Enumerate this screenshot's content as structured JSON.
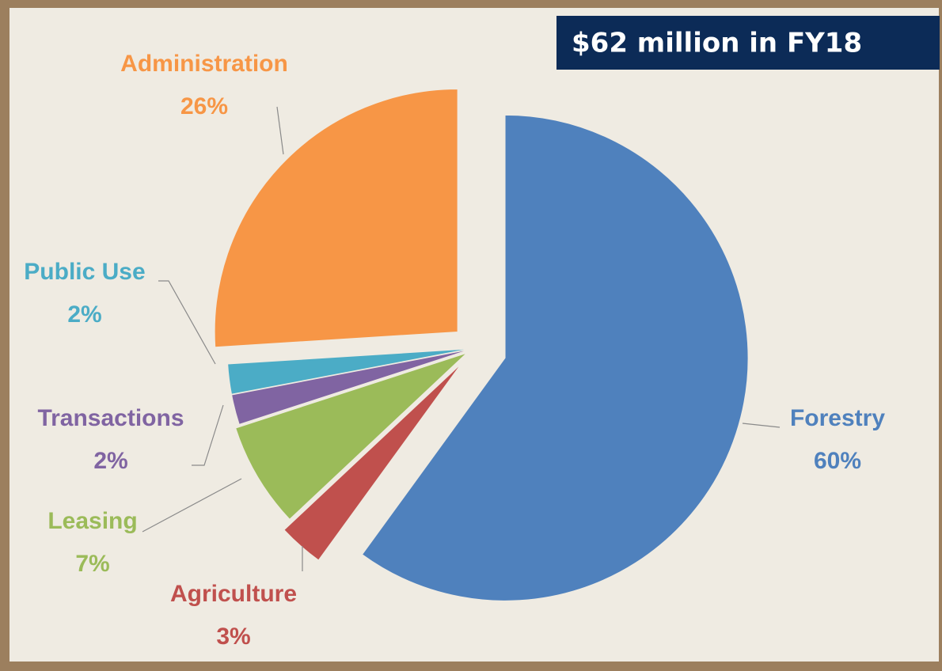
{
  "chart_data": {
    "type": "pie",
    "annotation": "$62 million in FY18",
    "categories": [
      "Forestry",
      "Agriculture",
      "Leasing",
      "Transactions",
      "Public Use",
      "Administration"
    ],
    "values": [
      60,
      3,
      7,
      2,
      2,
      26
    ],
    "value_labels": [
      "60%",
      "3%",
      "7%",
      "2%",
      "2%",
      "26%"
    ],
    "colors": [
      "#4f81bd",
      "#c0504d",
      "#9bbb59",
      "#8064a2",
      "#4bacc6",
      "#f79646"
    ]
  }
}
